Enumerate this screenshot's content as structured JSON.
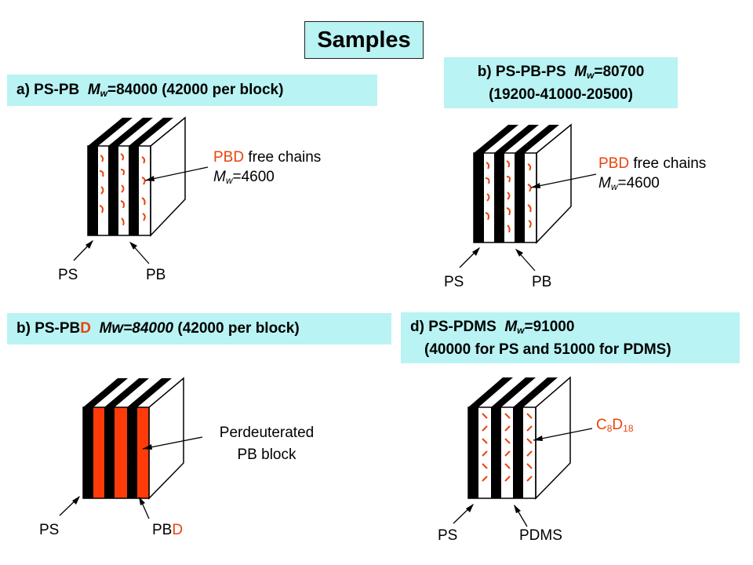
{
  "title": "Samples",
  "panels": {
    "a": {
      "head": "a) PS-PB",
      "mw_sym": "M",
      "mw_sub": "w",
      "mw_val": "=84000",
      "tail": "(42000 per block)",
      "annotation_red": "PBD",
      "annotation_rest": " free chains",
      "mw2_sym": "M",
      "mw2_sub": "w",
      "mw2_val": "=4600",
      "label_left": "PS",
      "label_right": "PB"
    },
    "b1": {
      "head": "b) PS-PB-PS",
      "mw_sym": "M",
      "mw_sub": "w",
      "mw_val": "=80700",
      "line2": "(19200-41000-20500)",
      "annotation_red": "PBD",
      "annotation_rest": " free chains",
      "mw2_sym": "M",
      "mw2_sub": "w",
      "mw2_val": "=4600",
      "label_left": "PS",
      "label_right": "PB"
    },
    "b2": {
      "head": "b) PS-PB",
      "head_red": "D",
      "mw": "Mw=84000",
      "tail": "(42000 per block)",
      "annotation_line1": "Perdeuterated",
      "annotation_line2": "PB block",
      "label_left": "PS",
      "label_right_a": "PB",
      "label_right_b": "D"
    },
    "d": {
      "head": "d) PS-PDMS",
      "mw_sym": "M",
      "mw_sub": "w",
      "mw_val": "=91000",
      "line2": "(40000 for PS and 51000 for PDMS)",
      "annotation_c": "C",
      "annotation_c_sub": "8",
      "annotation_d": "D",
      "annotation_d_sub": "18",
      "label_left": "PS",
      "label_right": "PDMS"
    }
  },
  "colors": {
    "caption_bg": "#b9f3f3",
    "accent_red": "#e8440c",
    "lamella": "#000000"
  }
}
